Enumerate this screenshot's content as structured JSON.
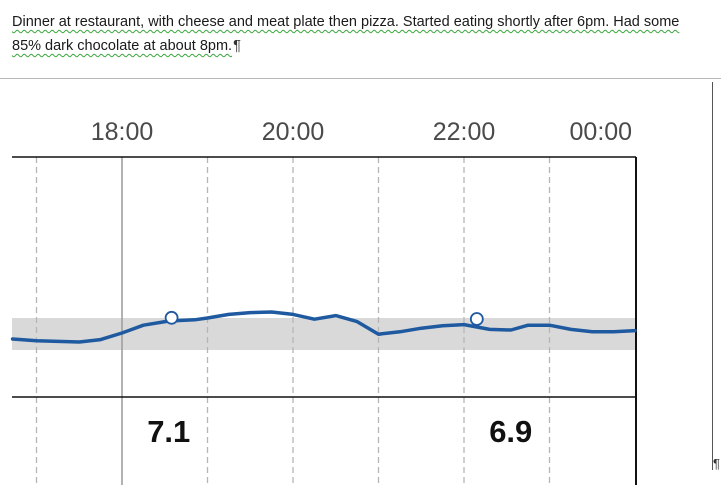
{
  "document": {
    "note_text": "Dinner at restaurant, with cheese and meat plate then pizza. Started eating shortly after 6pm. Had some 85% dark chocolate at about 8pm.",
    "formatting_marks": {
      "paragraph_mark": "¶",
      "end_mark": "¶"
    }
  },
  "chart_data": {
    "type": "line",
    "title": "",
    "xlabel": "",
    "ylabel": "",
    "x_tick_labels": [
      "18:00",
      "20:00",
      "22:00",
      "00:00"
    ],
    "target_band_color": "#d9d9d9",
    "line_color": "#1f5aa0",
    "series": [
      {
        "points": [
          {
            "t": 16.72,
            "v": 0.45
          },
          {
            "t": 17.0,
            "v": 0.42
          },
          {
            "t": 17.5,
            "v": 0.4
          },
          {
            "t": 17.75,
            "v": 0.44
          },
          {
            "t": 18.0,
            "v": 0.55
          },
          {
            "t": 18.25,
            "v": 0.68
          },
          {
            "t": 18.55,
            "v": 0.75
          },
          {
            "t": 18.85,
            "v": 0.77
          },
          {
            "t": 19.0,
            "v": 0.8
          },
          {
            "t": 19.25,
            "v": 0.86
          },
          {
            "t": 19.5,
            "v": 0.89
          },
          {
            "t": 19.75,
            "v": 0.9
          },
          {
            "t": 20.0,
            "v": 0.86
          },
          {
            "t": 20.25,
            "v": 0.78
          },
          {
            "t": 20.5,
            "v": 0.84
          },
          {
            "t": 20.75,
            "v": 0.74
          },
          {
            "t": 21.0,
            "v": 0.53
          },
          {
            "t": 21.25,
            "v": 0.57
          },
          {
            "t": 21.5,
            "v": 0.63
          },
          {
            "t": 21.75,
            "v": 0.67
          },
          {
            "t": 22.0,
            "v": 0.69
          },
          {
            "t": 22.3,
            "v": 0.61
          },
          {
            "t": 22.55,
            "v": 0.6
          },
          {
            "t": 22.75,
            "v": 0.68
          },
          {
            "t": 23.0,
            "v": 0.68
          },
          {
            "t": 23.25,
            "v": 0.61
          },
          {
            "t": 23.5,
            "v": 0.57
          },
          {
            "t": 23.75,
            "v": 0.57
          },
          {
            "t": 24.0,
            "v": 0.59
          }
        ]
      }
    ],
    "markers": [
      {
        "t": 18.58,
        "v": 0.77
      },
      {
        "t": 22.15,
        "v": 0.75
      }
    ],
    "bottom_values": [
      {
        "t": 18.5,
        "label": "7.1"
      },
      {
        "t": 22.5,
        "label": "6.9"
      }
    ]
  }
}
